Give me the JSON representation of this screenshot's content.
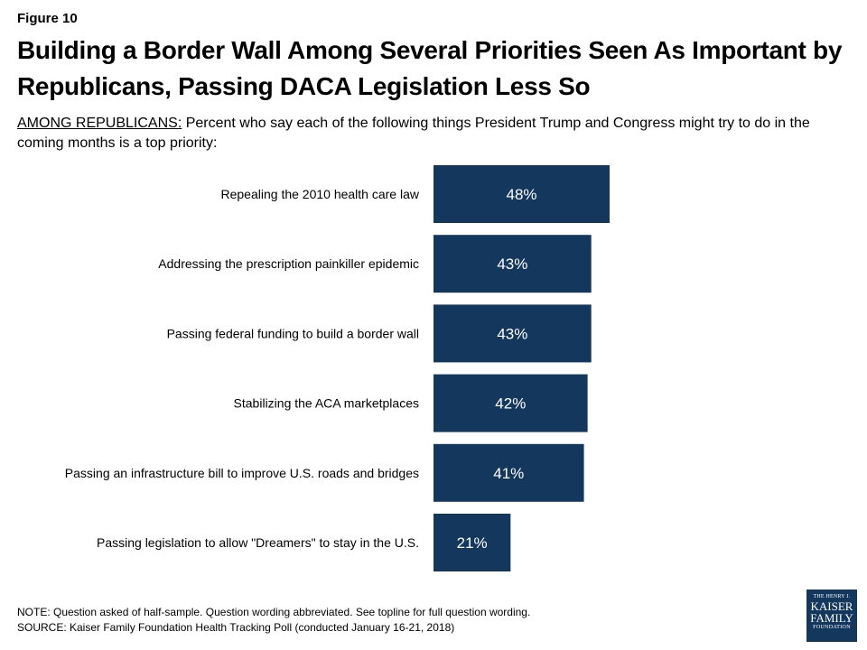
{
  "figure_label": "Figure 10",
  "title": "Building a Border Wall Among Several Priorities Seen As Important by Republicans, Passing DACA Legislation Less So",
  "subtitle_lead": "AMONG REPUBLICANS:",
  "subtitle_rest": " Percent who say each of the following things President Trump and Congress might try to do in the coming months is a top priority:",
  "note": "NOTE: Question asked of half-sample. Question wording abbreviated. See topline for full question wording.",
  "source": "SOURCE: Kaiser Family Foundation Health Tracking Poll (conducted January 16-21, 2018)",
  "logo": {
    "line1": "THE HENRY J.",
    "line2": "KAISER",
    "line3": "FAMILY",
    "line4": "FOUNDATION"
  },
  "colors": {
    "bar": "#14375e",
    "bar_label": "#ffffff",
    "logo_bg": "#14375e"
  },
  "chart_data": {
    "type": "bar",
    "orientation": "horizontal",
    "categories": [
      "Repealing the 2010 health care law",
      "Addressing the prescription painkiller epidemic",
      "Passing federal funding to build a border wall",
      "Stabilizing the ACA marketplaces",
      "Passing an infrastructure bill to improve U.S. roads and bridges",
      "Passing legislation to allow \"Dreamers\" to stay in the U.S."
    ],
    "values": [
      48,
      43,
      43,
      42,
      41,
      21
    ],
    "value_labels": [
      "48%",
      "43%",
      "43%",
      "42%",
      "41%",
      "21%"
    ],
    "title": "",
    "xlabel": "",
    "ylabel": "",
    "xlim": [
      0,
      100
    ],
    "grid": false,
    "legend": "none"
  }
}
